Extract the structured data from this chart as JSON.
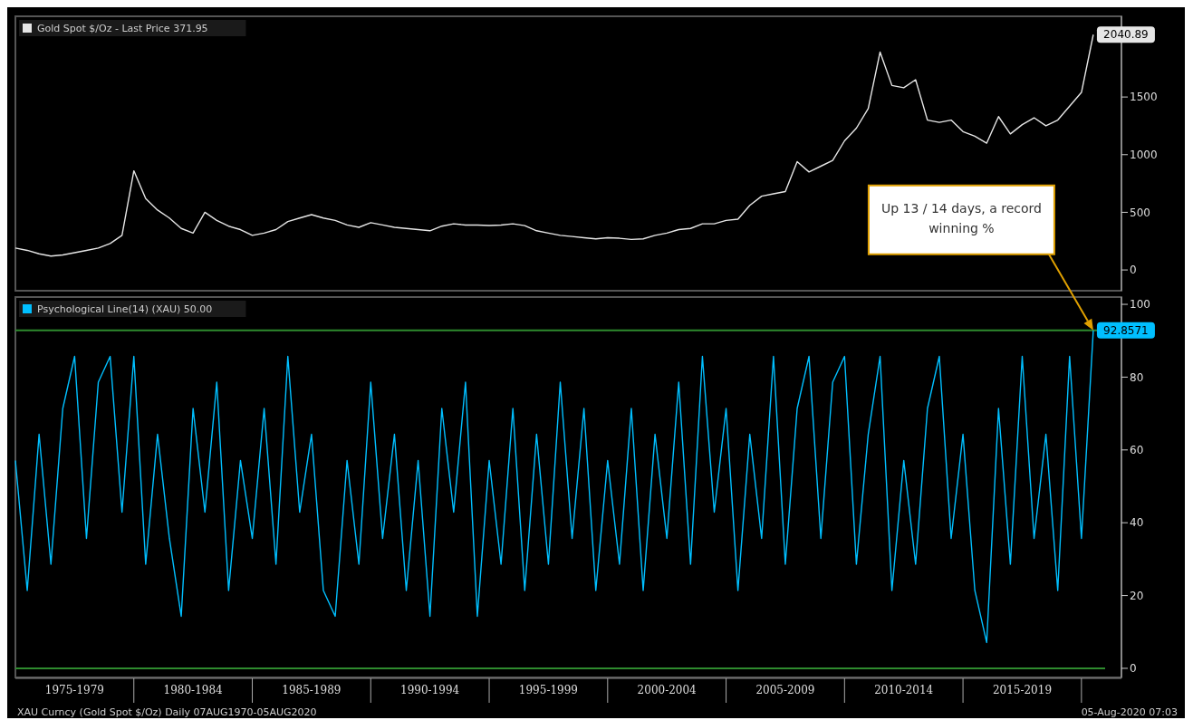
{
  "chart_data": [
    {
      "type": "line",
      "ylim": [
        -180,
        2200
      ],
      "yticks": [
        0,
        500,
        1000,
        1500
      ],
      "tick_labels": "y",
      "legend": "top left",
      "grid": false,
      "series": [
        {
          "name": "Gold Spot $/Oz - Last Price 371.95",
          "color": "#e6e6e6",
          "values": [
            190,
            170,
            140,
            120,
            130,
            150,
            170,
            190,
            230,
            300,
            860,
            620,
            520,
            450,
            360,
            320,
            500,
            430,
            380,
            350,
            300,
            320,
            350,
            420,
            450,
            480,
            450,
            430,
            390,
            370,
            410,
            390,
            370,
            360,
            350,
            340,
            380,
            400,
            390,
            390,
            385,
            390,
            400,
            385,
            340,
            320,
            300,
            290,
            280,
            270,
            280,
            275,
            265,
            270,
            300,
            320,
            350,
            360,
            400,
            400,
            430,
            440,
            560,
            640,
            660,
            680,
            940,
            850,
            900,
            950,
            1120,
            1230,
            1400,
            1890,
            1600,
            1580,
            1650,
            1300,
            1280,
            1300,
            1200,
            1160,
            1100,
            1330,
            1180,
            1260,
            1320,
            1250,
            1300,
            1420,
            1540,
            2040.89,
            null
          ],
          "value_labels": [
            null,
            null,
            null,
            null,
            null,
            null,
            null,
            null,
            null,
            null,
            null,
            null,
            null,
            null,
            null,
            null,
            null,
            null,
            null,
            null,
            null,
            null,
            null,
            null,
            null,
            null,
            null,
            null,
            null,
            null,
            null,
            null,
            null,
            null,
            null,
            null,
            null,
            null,
            null,
            null,
            null,
            null,
            null,
            null,
            null,
            null,
            null,
            null,
            null,
            null,
            null,
            null,
            null,
            null,
            null,
            null,
            null,
            null,
            null,
            null,
            null,
            null,
            null,
            null,
            null,
            null,
            null,
            null,
            null,
            null,
            null,
            null,
            null,
            null,
            null,
            null,
            null,
            null,
            null,
            null,
            null,
            null,
            null,
            null,
            null,
            null,
            null,
            null,
            null,
            null,
            null,
            "2040.89",
            null
          ]
        }
      ]
    },
    {
      "type": "line",
      "ylim": [
        -2.5,
        102
      ],
      "yticks": [
        0,
        20,
        40,
        60,
        80,
        100
      ],
      "legend": "top left",
      "grid": false,
      "categories": [
        null,
        null,
        null,
        null,
        null,
        "1975-1979",
        null,
        null,
        null,
        null,
        null,
        null,
        null,
        null,
        null,
        "1980-1984",
        null,
        null,
        null,
        null,
        null,
        null,
        null,
        null,
        null,
        "1985-1989",
        null,
        null,
        null,
        null,
        null,
        null,
        null,
        null,
        null,
        "1990-1994",
        null,
        null,
        null,
        null,
        null,
        null,
        null,
        null,
        null,
        "1995-1999",
        null,
        null,
        null,
        null,
        null,
        null,
        null,
        null,
        null,
        "2000-2004",
        null,
        null,
        null,
        null,
        null,
        null,
        null,
        null,
        null,
        "2005-2009",
        null,
        null,
        null,
        null,
        null,
        null,
        null,
        null,
        null,
        "2010-2014",
        null,
        null,
        null,
        null,
        null,
        null,
        null,
        null,
        null,
        "2015-2019",
        null,
        null,
        null,
        null,
        null,
        null,
        null
      ],
      "ref_lines": [
        {
          "axis": "y",
          "value": 92.8571,
          "color": "#2e8b2e"
        },
        {
          "axis": "y",
          "value": 0,
          "color": "#2e8b2e"
        }
      ],
      "annotations": [
        "Up 13 / 14 days, a record winning %",
        "XAU Curncy (Gold Spot $/Oz) Daily 07AUG1970-05AUG2020",
        "05-Aug-2020 07:03"
      ],
      "series": [
        {
          "name": "Psychological Line(14) (XAU) 50.00",
          "color": "#00bfff",
          "values": [
            57.1,
            21.4,
            64.3,
            28.6,
            71.4,
            85.7,
            35.7,
            78.6,
            85.7,
            42.9,
            85.7,
            28.6,
            64.3,
            35.7,
            14.3,
            71.4,
            42.9,
            78.6,
            21.4,
            57.1,
            35.7,
            71.4,
            28.6,
            85.7,
            42.9,
            64.3,
            21.4,
            14.3,
            57.1,
            28.6,
            78.6,
            35.7,
            64.3,
            21.4,
            57.1,
            14.3,
            71.4,
            42.9,
            78.6,
            14.3,
            57.1,
            28.6,
            71.4,
            21.4,
            64.3,
            28.6,
            78.6,
            35.7,
            71.4,
            21.4,
            57.1,
            28.6,
            71.4,
            21.4,
            64.3,
            35.7,
            78.6,
            28.6,
            85.7,
            42.9,
            71.4,
            21.4,
            64.3,
            35.7,
            85.7,
            28.6,
            71.4,
            85.7,
            35.7,
            78.6,
            85.7,
            28.6,
            64.3,
            85.7,
            21.4,
            57.1,
            28.6,
            71.4,
            85.7,
            35.7,
            64.3,
            21.4,
            7.1,
            71.4,
            28.6,
            85.7,
            35.7,
            64.3,
            21.4,
            85.7,
            35.7,
            92.8571,
            null
          ],
          "value_labels": [
            null,
            null,
            null,
            null,
            null,
            null,
            null,
            null,
            null,
            null,
            null,
            null,
            null,
            null,
            null,
            null,
            null,
            null,
            null,
            null,
            null,
            null,
            null,
            null,
            null,
            null,
            null,
            null,
            null,
            null,
            null,
            null,
            null,
            null,
            null,
            null,
            null,
            null,
            null,
            null,
            null,
            null,
            null,
            null,
            null,
            null,
            null,
            null,
            null,
            null,
            null,
            null,
            null,
            null,
            null,
            null,
            null,
            null,
            null,
            null,
            null,
            null,
            null,
            null,
            null,
            null,
            null,
            null,
            null,
            null,
            null,
            null,
            null,
            null,
            null,
            null,
            null,
            null,
            null,
            null,
            null,
            null,
            null,
            null,
            null,
            null,
            null,
            null,
            null,
            null,
            null,
            "92.8571",
            null
          ]
        }
      ]
    }
  ]
}
